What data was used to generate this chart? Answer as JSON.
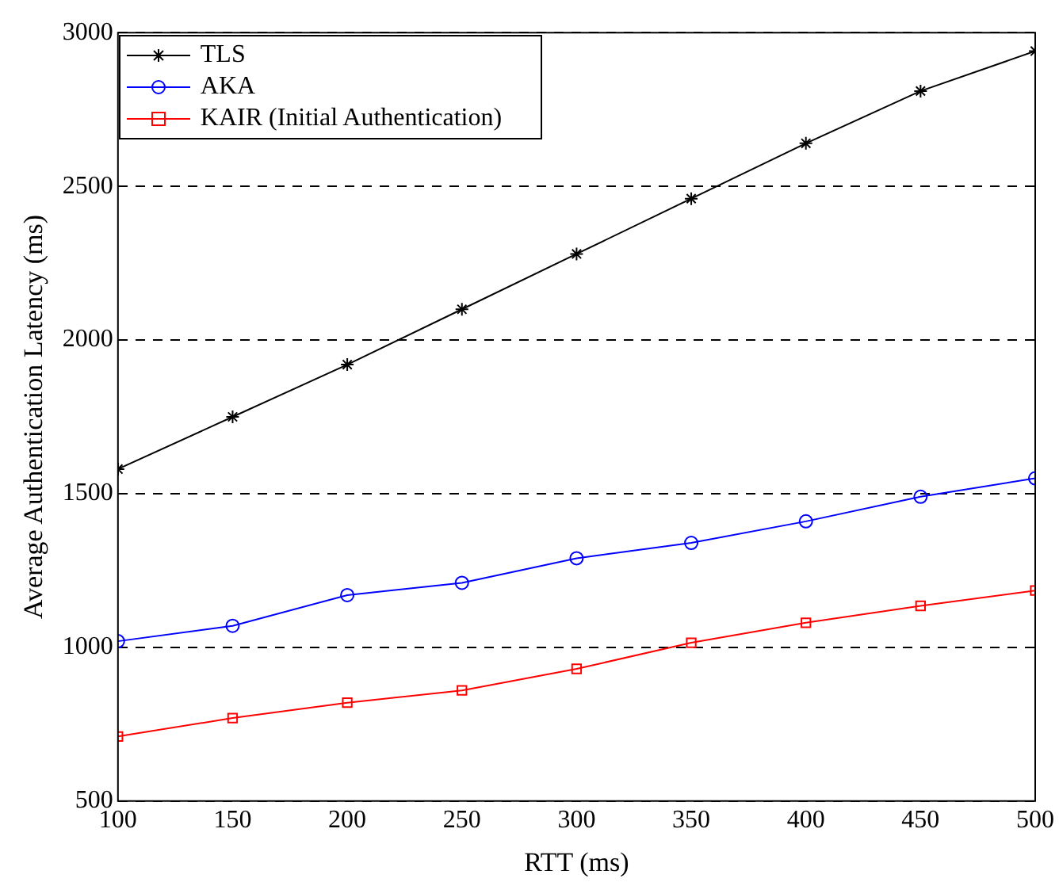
{
  "chart_data": {
    "type": "line",
    "xlabel": "RTT (ms)",
    "ylabel": "Average Authentication Latency (ms)",
    "x": [
      100,
      150,
      200,
      250,
      300,
      350,
      400,
      450,
      500
    ],
    "xlim": [
      100,
      500
    ],
    "xticks": [
      100,
      150,
      200,
      250,
      300,
      350,
      400,
      450,
      500
    ],
    "ylim": [
      500,
      3000
    ],
    "yticks": [
      500,
      1000,
      1500,
      2000,
      2500,
      3000
    ],
    "grid": "y",
    "legend": "top left",
    "line_style": "solid",
    "series": [
      {
        "name": "TLS",
        "color": "#000000",
        "marker": "cross",
        "values": [
          1580,
          1750,
          1920,
          2100,
          2280,
          2460,
          2640,
          2810,
          2940
        ]
      },
      {
        "name": "AKA",
        "color": "#0000ff",
        "marker": "circle",
        "values": [
          1020,
          1070,
          1170,
          1210,
          1290,
          1340,
          1410,
          1490,
          1550
        ]
      },
      {
        "name": "KAIR (Initial Authentication)",
        "color": "#ff0000",
        "marker": "square",
        "values": [
          710,
          770,
          820,
          860,
          930,
          1015,
          1080,
          1135,
          1185
        ]
      }
    ]
  }
}
